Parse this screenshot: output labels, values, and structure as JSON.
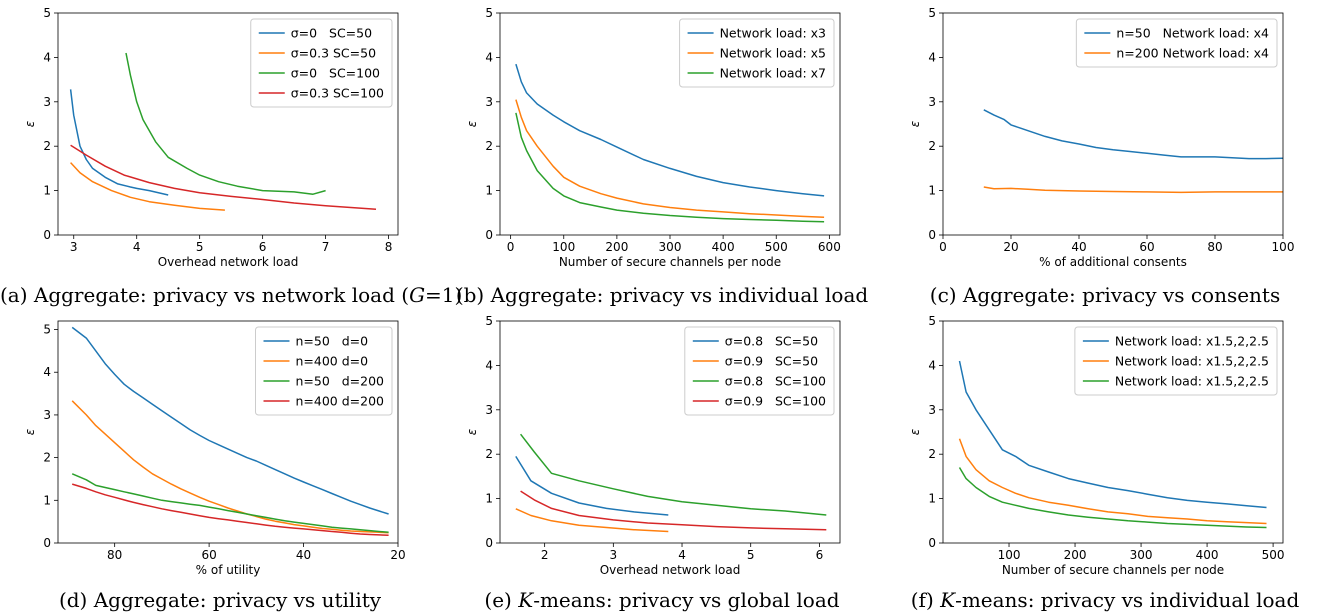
{
  "chart_data": [
    {
      "id": "a",
      "type": "line",
      "caption": "(a) Aggregate: privacy vs network load (G=1)",
      "caption_html": "(a) Aggregate: privacy vs network load (<i>G</i>=1)",
      "xlabel": "Overhead network load",
      "ylabel": "ε",
      "xlim": [
        2.75,
        8.15
      ],
      "ylim": [
        0,
        5
      ],
      "xticks": [
        3,
        4,
        5,
        6,
        7,
        8
      ],
      "yticks": [
        0,
        1,
        2,
        3,
        4,
        5
      ],
      "legend_position": "top-right",
      "series": [
        {
          "name": "σ=0   SC=50",
          "color": "#1f77b4",
          "x": [
            2.95,
            3.0,
            3.1,
            3.2,
            3.3,
            3.5,
            3.7,
            3.9,
            4.0,
            4.2,
            4.5
          ],
          "y": [
            3.28,
            2.7,
            2.0,
            1.7,
            1.5,
            1.3,
            1.15,
            1.08,
            1.05,
            1.0,
            0.9
          ]
        },
        {
          "name": "σ=0.3 SC=50",
          "color": "#ff7f0e",
          "x": [
            2.95,
            3.1,
            3.3,
            3.6,
            3.9,
            4.2,
            4.6,
            5.0,
            5.4
          ],
          "y": [
            1.63,
            1.4,
            1.2,
            1.0,
            0.85,
            0.75,
            0.67,
            0.6,
            0.56
          ]
        },
        {
          "name": "σ=0   SC=100",
          "color": "#2ca02c",
          "x": [
            3.83,
            3.9,
            4.0,
            4.1,
            4.3,
            4.5,
            4.8,
            5.0,
            5.3,
            5.6,
            6.0,
            6.5,
            6.8,
            7.0
          ],
          "y": [
            4.1,
            3.6,
            3.0,
            2.6,
            2.1,
            1.75,
            1.5,
            1.35,
            1.2,
            1.1,
            1.0,
            0.97,
            0.92,
            1.0
          ]
        },
        {
          "name": "σ=0.3 SC=100",
          "color": "#d62728",
          "x": [
            2.95,
            3.2,
            3.5,
            3.8,
            4.2,
            4.6,
            5.0,
            5.5,
            6.0,
            6.5,
            7.0,
            7.4,
            7.8
          ],
          "y": [
            2.02,
            1.8,
            1.55,
            1.35,
            1.18,
            1.05,
            0.95,
            0.87,
            0.8,
            0.72,
            0.66,
            0.62,
            0.58
          ]
        }
      ]
    },
    {
      "id": "b",
      "type": "line",
      "caption": "(b) Aggregate: privacy vs individual load",
      "caption_html": "(b) Aggregate: privacy vs individual load",
      "xlabel": "Number of secure channels per node",
      "ylabel": "ε",
      "xlim": [
        -20,
        620
      ],
      "ylim": [
        0,
        5
      ],
      "xticks": [
        0,
        100,
        200,
        300,
        400,
        500,
        600
      ],
      "yticks": [
        0,
        1,
        2,
        3,
        4,
        5
      ],
      "legend_position": "top-right",
      "series": [
        {
          "name": "Network load: x3",
          "color": "#1f77b4",
          "x": [
            10,
            20,
            30,
            50,
            80,
            100,
            130,
            170,
            200,
            250,
            300,
            350,
            400,
            450,
            500,
            550,
            590
          ],
          "y": [
            3.85,
            3.45,
            3.2,
            2.95,
            2.7,
            2.55,
            2.35,
            2.15,
            1.98,
            1.7,
            1.5,
            1.32,
            1.18,
            1.08,
            1.0,
            0.93,
            0.88
          ]
        },
        {
          "name": "Network load: x5",
          "color": "#ff7f0e",
          "x": [
            10,
            20,
            30,
            50,
            80,
            100,
            130,
            170,
            200,
            250,
            300,
            350,
            400,
            450,
            500,
            550,
            590
          ],
          "y": [
            3.05,
            2.65,
            2.35,
            2.0,
            1.55,
            1.3,
            1.1,
            0.93,
            0.83,
            0.7,
            0.62,
            0.56,
            0.52,
            0.48,
            0.45,
            0.42,
            0.4
          ]
        },
        {
          "name": "Network load: x7",
          "color": "#2ca02c",
          "x": [
            10,
            20,
            30,
            50,
            80,
            100,
            130,
            170,
            200,
            250,
            300,
            350,
            400,
            450,
            500,
            550,
            590
          ],
          "y": [
            2.75,
            2.2,
            1.9,
            1.45,
            1.05,
            0.88,
            0.73,
            0.63,
            0.56,
            0.49,
            0.44,
            0.4,
            0.37,
            0.35,
            0.33,
            0.31,
            0.3
          ]
        }
      ]
    },
    {
      "id": "c",
      "type": "line",
      "caption": "(c) Aggregate: privacy vs consents",
      "caption_html": "(c) Aggregate: privacy vs consents",
      "xlabel": "% of additional consents",
      "ylabel": "ε",
      "xlim": [
        0,
        100
      ],
      "ylim": [
        0,
        5
      ],
      "xticks": [
        0,
        20,
        40,
        60,
        80,
        100
      ],
      "yticks": [
        0,
        1,
        2,
        3,
        4,
        5
      ],
      "legend_position": "top-right",
      "series": [
        {
          "name": "n=50   Network load: x4",
          "color": "#1f77b4",
          "x": [
            12,
            15,
            18,
            20,
            25,
            30,
            35,
            40,
            45,
            50,
            55,
            60,
            65,
            70,
            75,
            80,
            85,
            90,
            95,
            100
          ],
          "y": [
            2.82,
            2.7,
            2.6,
            2.48,
            2.35,
            2.22,
            2.12,
            2.05,
            1.97,
            1.92,
            1.88,
            1.84,
            1.8,
            1.76,
            1.76,
            1.76,
            1.74,
            1.72,
            1.72,
            1.73
          ]
        },
        {
          "name": "n=200 Network load: x4",
          "color": "#ff7f0e",
          "x": [
            12,
            15,
            20,
            25,
            30,
            40,
            50,
            60,
            70,
            80,
            90,
            100
          ],
          "y": [
            1.08,
            1.04,
            1.05,
            1.03,
            1.01,
            0.99,
            0.98,
            0.97,
            0.96,
            0.97,
            0.97,
            0.97
          ]
        }
      ]
    },
    {
      "id": "d",
      "type": "line",
      "caption": "(d) Aggregate: privacy vs utility",
      "caption_html": "(d) Aggregate: privacy vs utility",
      "xlabel": "% of utility",
      "ylabel": "ε",
      "xlim": [
        92,
        20
      ],
      "ylim": [
        0,
        5.2
      ],
      "xticks": [
        80,
        60,
        40,
        20
      ],
      "yticks": [
        0,
        1,
        2,
        3,
        4,
        5
      ],
      "legend_position": "top-right",
      "series": [
        {
          "name": "n=50   d=0",
          "color": "#1f77b4",
          "x": [
            89,
            86,
            84,
            82,
            80,
            78,
            76,
            74,
            72,
            70,
            68,
            66,
            64,
            62,
            60,
            58,
            56,
            54,
            52,
            50,
            48,
            46,
            44,
            42,
            40,
            38,
            36,
            34,
            32,
            30,
            28,
            26,
            24,
            22
          ],
          "y": [
            5.05,
            4.8,
            4.5,
            4.2,
            3.95,
            3.72,
            3.55,
            3.4,
            3.25,
            3.1,
            2.95,
            2.8,
            2.65,
            2.52,
            2.4,
            2.3,
            2.2,
            2.1,
            2.0,
            1.92,
            1.82,
            1.72,
            1.62,
            1.52,
            1.43,
            1.34,
            1.25,
            1.16,
            1.07,
            0.98,
            0.9,
            0.82,
            0.75,
            0.68
          ]
        },
        {
          "name": "n=400 d=0",
          "color": "#ff7f0e",
          "x": [
            89,
            86,
            84,
            82,
            80,
            78,
            76,
            74,
            72,
            70,
            68,
            66,
            64,
            62,
            60,
            58,
            56,
            54,
            52,
            50,
            48,
            46,
            44,
            42,
            40,
            38,
            36,
            34,
            32,
            30,
            28,
            26,
            24,
            22
          ],
          "y": [
            3.33,
            3.0,
            2.75,
            2.55,
            2.35,
            2.15,
            1.95,
            1.78,
            1.62,
            1.5,
            1.38,
            1.27,
            1.17,
            1.07,
            0.98,
            0.9,
            0.82,
            0.75,
            0.68,
            0.62,
            0.56,
            0.51,
            0.47,
            0.43,
            0.4,
            0.37,
            0.34,
            0.32,
            0.3,
            0.28,
            0.27,
            0.26,
            0.25,
            0.24
          ]
        },
        {
          "name": "n=50   d=200",
          "color": "#2ca02c",
          "x": [
            89,
            86,
            84,
            82,
            80,
            78,
            76,
            74,
            72,
            70,
            68,
            66,
            64,
            62,
            60,
            58,
            56,
            54,
            52,
            50,
            48,
            46,
            44,
            42,
            40,
            38,
            36,
            34,
            32,
            30,
            28,
            26,
            24,
            22
          ],
          "y": [
            1.62,
            1.48,
            1.35,
            1.3,
            1.25,
            1.2,
            1.15,
            1.1,
            1.05,
            1.0,
            0.97,
            0.94,
            0.91,
            0.88,
            0.84,
            0.8,
            0.76,
            0.72,
            0.68,
            0.64,
            0.6,
            0.56,
            0.52,
            0.49,
            0.46,
            0.43,
            0.4,
            0.37,
            0.35,
            0.33,
            0.31,
            0.29,
            0.27,
            0.25
          ]
        },
        {
          "name": "n=400 d=200",
          "color": "#d62728",
          "x": [
            89,
            86,
            84,
            82,
            80,
            78,
            76,
            74,
            72,
            70,
            68,
            66,
            64,
            62,
            60,
            58,
            56,
            54,
            52,
            50,
            48,
            46,
            44,
            42,
            40,
            38,
            36,
            34,
            32,
            30,
            28,
            26,
            24,
            22
          ],
          "y": [
            1.38,
            1.28,
            1.2,
            1.13,
            1.07,
            1.01,
            0.95,
            0.9,
            0.85,
            0.8,
            0.76,
            0.72,
            0.68,
            0.64,
            0.6,
            0.57,
            0.54,
            0.51,
            0.48,
            0.45,
            0.42,
            0.39,
            0.37,
            0.35,
            0.33,
            0.31,
            0.29,
            0.27,
            0.25,
            0.23,
            0.21,
            0.2,
            0.19,
            0.18
          ]
        }
      ]
    },
    {
      "id": "e",
      "type": "line",
      "caption": "(e) K-means: privacy vs global load",
      "caption_html": "(e) <i>K</i>-means: privacy vs global load",
      "xlabel": "Overhead network load",
      "ylabel": "ε",
      "xlim": [
        1.35,
        6.3
      ],
      "ylim": [
        0,
        5
      ],
      "xticks": [
        2,
        3,
        4,
        5,
        6
      ],
      "yticks": [
        0,
        1,
        2,
        3,
        4,
        5
      ],
      "legend_position": "top-right",
      "series": [
        {
          "name": "σ=0.8   SC=50",
          "color": "#1f77b4",
          "x": [
            1.58,
            1.8,
            2.1,
            2.5,
            2.9,
            3.3,
            3.8
          ],
          "y": [
            1.95,
            1.4,
            1.12,
            0.9,
            0.78,
            0.7,
            0.63
          ]
        },
        {
          "name": "σ=0.9   SC=50",
          "color": "#ff7f0e",
          "x": [
            1.58,
            1.8,
            2.1,
            2.5,
            2.9,
            3.3,
            3.8
          ],
          "y": [
            0.77,
            0.62,
            0.5,
            0.4,
            0.35,
            0.3,
            0.26
          ]
        },
        {
          "name": "σ=0.8   SC=100",
          "color": "#2ca02c",
          "x": [
            1.65,
            1.85,
            2.1,
            2.5,
            3.0,
            3.5,
            4.0,
            4.5,
            5.0,
            5.5,
            6.1
          ],
          "y": [
            2.45,
            2.05,
            1.57,
            1.4,
            1.22,
            1.05,
            0.93,
            0.85,
            0.77,
            0.72,
            0.63
          ]
        },
        {
          "name": "σ=0.9   SC=100",
          "color": "#d62728",
          "x": [
            1.65,
            1.85,
            2.1,
            2.5,
            3.0,
            3.5,
            4.0,
            4.5,
            5.0,
            5.5,
            6.1
          ],
          "y": [
            1.17,
            0.97,
            0.78,
            0.62,
            0.52,
            0.45,
            0.41,
            0.37,
            0.34,
            0.32,
            0.3
          ]
        }
      ]
    },
    {
      "id": "f",
      "type": "line",
      "caption": "(f) K-means: privacy vs individual load",
      "caption_html": "(f) <i>K</i>-means: privacy vs individual load",
      "xlabel": "Number of secure channels per node",
      "ylabel": "ε",
      "xlim": [
        0,
        515
      ],
      "ylim": [
        0,
        5
      ],
      "xticks": [
        100,
        200,
        300,
        400,
        500
      ],
      "yticks": [
        0,
        1,
        2,
        3,
        4,
        5
      ],
      "legend_position": "top-right",
      "series": [
        {
          "name": "Network load: x1.5,2,2.5",
          "color": "#1f77b4",
          "x": [
            25,
            35,
            50,
            70,
            90,
            110,
            130,
            160,
            190,
            220,
            250,
            280,
            310,
            340,
            370,
            400,
            430,
            460,
            490
          ],
          "y": [
            4.1,
            3.4,
            3.0,
            2.55,
            2.1,
            1.95,
            1.75,
            1.6,
            1.45,
            1.35,
            1.25,
            1.18,
            1.1,
            1.02,
            0.96,
            0.92,
            0.88,
            0.84,
            0.8
          ]
        },
        {
          "name": "Network load: x1.5,2,2.5",
          "color": "#ff7f0e",
          "x": [
            25,
            35,
            50,
            70,
            90,
            110,
            130,
            160,
            190,
            220,
            250,
            280,
            310,
            340,
            370,
            400,
            430,
            460,
            490
          ],
          "y": [
            2.35,
            1.95,
            1.65,
            1.4,
            1.25,
            1.12,
            1.02,
            0.92,
            0.85,
            0.77,
            0.7,
            0.66,
            0.6,
            0.57,
            0.54,
            0.5,
            0.48,
            0.46,
            0.44
          ]
        },
        {
          "name": "Network load: x1.5,2,2.5",
          "color": "#2ca02c",
          "x": [
            25,
            35,
            50,
            70,
            90,
            110,
            130,
            160,
            190,
            220,
            250,
            280,
            310,
            340,
            370,
            400,
            430,
            460,
            490
          ],
          "y": [
            1.7,
            1.45,
            1.25,
            1.05,
            0.92,
            0.85,
            0.78,
            0.7,
            0.63,
            0.58,
            0.54,
            0.5,
            0.47,
            0.44,
            0.42,
            0.4,
            0.38,
            0.36,
            0.35
          ]
        }
      ]
    }
  ]
}
